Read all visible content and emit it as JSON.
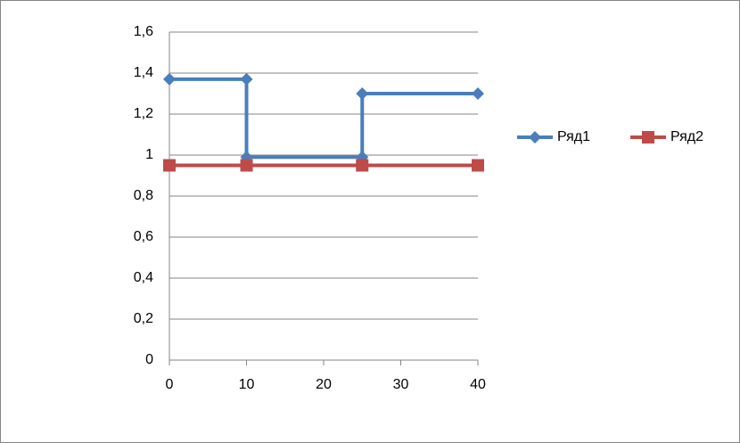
{
  "chart_data": {
    "type": "scatter",
    "series": [
      {
        "name": "Ряд1",
        "color": "#4a7ebb",
        "marker": "diamond",
        "x": [
          0,
          10,
          10,
          25,
          25,
          40
        ],
        "y": [
          1.37,
          1.37,
          0.99,
          0.99,
          1.3,
          1.3
        ]
      },
      {
        "name": "Ряд2",
        "color": "#be4b48",
        "marker": "square",
        "x": [
          0,
          10,
          25,
          40
        ],
        "y": [
          0.95,
          0.95,
          0.95,
          0.95
        ]
      }
    ],
    "xlim": [
      0,
      40
    ],
    "xticks": [
      0,
      10,
      20,
      30,
      40
    ],
    "ylim": [
      0,
      1.6
    ],
    "yticks": [
      0,
      {
        "value": 0.2,
        "label": "0,2"
      },
      {
        "value": 0.4,
        "label": "0,4"
      },
      {
        "value": 0.6,
        "label": "0,6"
      },
      {
        "value": 0.8,
        "label": "0,8"
      },
      1,
      {
        "value": 1.2,
        "label": "1,2"
      },
      {
        "value": 1.4,
        "label": "1,4"
      },
      {
        "value": 1.6,
        "label": "1,6"
      }
    ],
    "grid": true,
    "legend": "right"
  }
}
